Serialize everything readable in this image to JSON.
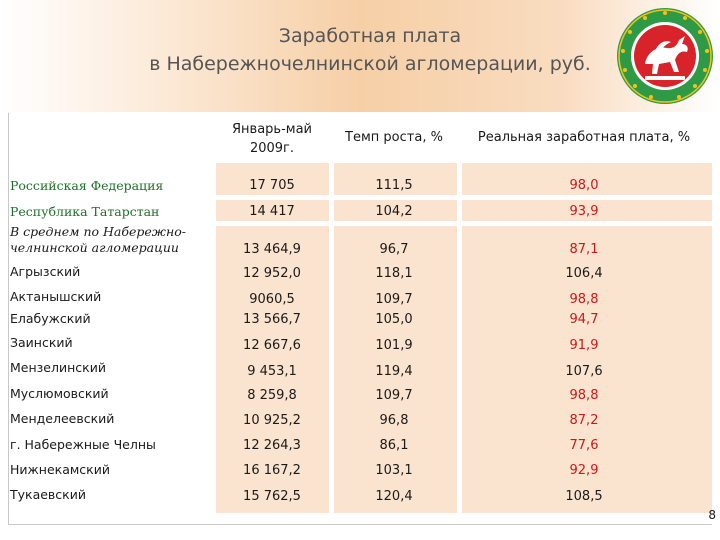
{
  "title": {
    "line1": "Заработная плата",
    "line2": "в Набережночелнинской  агломерации, руб."
  },
  "emblem": {
    "icon": "tatarstan-coat-of-arms-icon",
    "colors": {
      "ring": "#2e9a46",
      "center": "#d8232a",
      "figure": "#ffffff",
      "accent": "#f2c21b"
    }
  },
  "table": {
    "headers": {
      "col1_line1": "Январь-май",
      "col1_line2": "2009г.",
      "col2": "Темп роста, %",
      "col3": "Реальная заработная плата, %"
    },
    "rows": [
      {
        "label": "Российская Федерация",
        "jan_may_2009": "17 705",
        "growth_rate": "111,5",
        "real_wage": "98,0"
      },
      {
        "label": "Республика Татарстан",
        "jan_may_2009": "14 417",
        "growth_rate": "104,2",
        "real_wage": "93,9"
      },
      {
        "label_line1": "В среднем по Набережно-",
        "label_line2": "челнинской агломерации",
        "jan_may_2009": "13 464,9",
        "growth_rate": "96,7",
        "real_wage": "87,1"
      },
      {
        "label": "Агрызский",
        "jan_may_2009": "12 952,0",
        "growth_rate": "118,1",
        "real_wage": "106,4"
      },
      {
        "label": "Актанышский",
        "jan_may_2009": "9060,5",
        "growth_rate": "109,7",
        "real_wage": "98,8"
      },
      {
        "label": "Елабужский",
        "jan_may_2009": "13 566,7",
        "growth_rate": "105,0",
        "real_wage": "94,7"
      },
      {
        "label": "Заинский",
        "jan_may_2009": "12 667,6",
        "growth_rate": "101,9",
        "real_wage": "91,9"
      },
      {
        "label": "Мензелинский",
        "jan_may_2009": "9 453,1",
        "growth_rate": "119,4",
        "real_wage": "107,6"
      },
      {
        "label": "Муслюмовский",
        "jan_may_2009": "8 259,8",
        "growth_rate": "109,7",
        "real_wage": "98,8"
      },
      {
        "label": "Менделеевский",
        "jan_may_2009": "10 925,2",
        "growth_rate": "96,8",
        "real_wage": "87,2"
      },
      {
        "label": "г. Набережные Челны",
        "jan_may_2009": "12 264,3",
        "growth_rate": "86,1",
        "real_wage": "77,6"
      },
      {
        "label": "Нижнекамский",
        "jan_may_2009": "16 167,2",
        "growth_rate": "103,1",
        "real_wage": "92,9"
      },
      {
        "label": "Тукаевский",
        "jan_may_2009": "15 762,5",
        "growth_rate": "120,4",
        "real_wage": "108,5"
      }
    ]
  },
  "colors": {
    "highlight_value": "#c81a1a",
    "label_green": "#1f6f2a",
    "table_fill": "#fbe4cf"
  },
  "page_number": "8"
}
